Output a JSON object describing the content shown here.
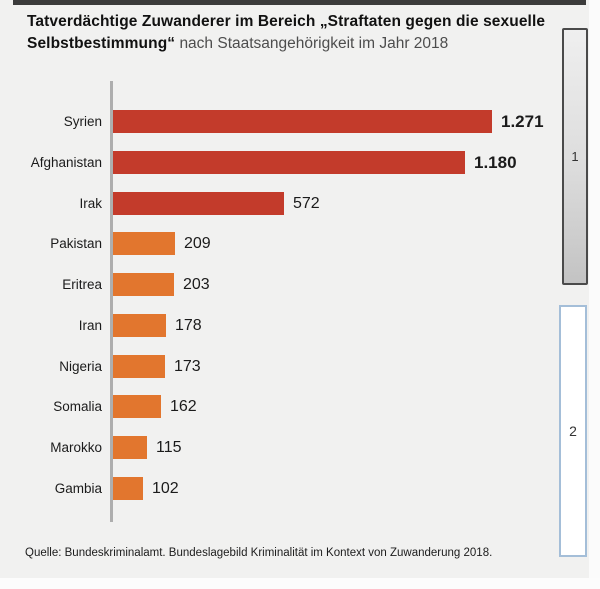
{
  "page": {
    "background_color": "#f1f1f0",
    "top_border_color": "#3b3b3b"
  },
  "title": {
    "bold": "Tatverdächtige Zuwanderer im Bereich „Straftaten gegen die sexuelle Selbstbestimmung“",
    "regular": "nach Staatsangehörigkeit im Jahr 2018"
  },
  "chart_data": {
    "type": "bar",
    "orientation": "horizontal",
    "title": "Tatverdächtige Zuwanderer im Bereich „Straftaten gegen die sexuelle Selbstbestimmung“ nach Staatsangehörigkeit im Jahr 2018",
    "xlabel": "",
    "ylabel": "",
    "xlim": [
      0,
      1300
    ],
    "grid": false,
    "legend": "none",
    "categories": [
      "Syrien",
      "Afghanistan",
      "Irak",
      "Pakistan",
      "Eritrea",
      "Iran",
      "Nigeria",
      "Somalia",
      "Marokko",
      "Gambia"
    ],
    "values": [
      1271,
      1180,
      572,
      209,
      203,
      178,
      173,
      162,
      115,
      102
    ],
    "rows": [
      {
        "category": "Syrien",
        "value": 1271,
        "display": "1.271",
        "color": "#c33b2b",
        "bold_value": true
      },
      {
        "category": "Afghanistan",
        "value": 1180,
        "display": "1.180",
        "color": "#c33b2b",
        "bold_value": true
      },
      {
        "category": "Irak",
        "value": 572,
        "display": "572",
        "color": "#c33b2b",
        "bold_value": false
      },
      {
        "category": "Pakistan",
        "value": 209,
        "display": "209",
        "color": "#e2762e",
        "bold_value": false
      },
      {
        "category": "Eritrea",
        "value": 203,
        "display": "203",
        "color": "#e2762e",
        "bold_value": false
      },
      {
        "category": "Iran",
        "value": 178,
        "display": "178",
        "color": "#e2762e",
        "bold_value": false
      },
      {
        "category": "Nigeria",
        "value": 173,
        "display": "173",
        "color": "#e2762e",
        "bold_value": false
      },
      {
        "category": "Somalia",
        "value": 162,
        "display": "162",
        "color": "#e2762e",
        "bold_value": false
      },
      {
        "category": "Marokko",
        "value": 115,
        "display": "115",
        "color": "#e2762e",
        "bold_value": false
      },
      {
        "category": "Gambia",
        "value": 102,
        "display": "102",
        "color": "#e2762e",
        "bold_value": false
      }
    ],
    "colors": {
      "high_series": "#c33b2b",
      "low_series": "#e2762e",
      "axis_line": "#aeaeae"
    }
  },
  "side_markers": {
    "one": "1",
    "two": "2"
  },
  "source": "Quelle: Bundeskriminalamt. Bundeslagebild Kriminalität im Kontext von Zuwanderung 2018."
}
